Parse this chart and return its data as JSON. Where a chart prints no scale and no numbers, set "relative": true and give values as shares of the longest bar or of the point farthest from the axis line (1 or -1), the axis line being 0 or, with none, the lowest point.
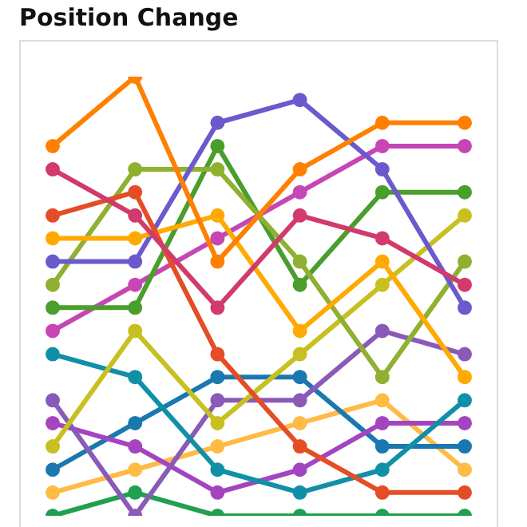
{
  "chart_data": {
    "type": "line",
    "title": "Position Change",
    "relative": true,
    "marker": "circle",
    "categories": [
      null,
      null,
      null,
      null,
      null,
      null
    ],
    "series": [
      {
        "color": "#ff8000",
        "values": [
          0.842,
          1,
          0.579,
          0.789,
          0.895,
          0.895
        ]
      },
      {
        "color": "#d13b6b",
        "values": [
          0.789,
          0.684,
          0.474,
          0.684,
          0.632,
          0.526
        ]
      },
      {
        "color": "#e44d26",
        "values": [
          0.684,
          0.737,
          0.368,
          0.158,
          0.053,
          0.053
        ]
      },
      {
        "color": "#ffaa00",
        "values": [
          0.632,
          0.632,
          0.684,
          0.421,
          0.579,
          0.316
        ]
      },
      {
        "color": "#6a5acd",
        "values": [
          0.579,
          0.579,
          0.895,
          0.947,
          0.789,
          0.474
        ]
      },
      {
        "color": "#8fb030",
        "values": [
          0.526,
          0.789,
          0.789,
          0.579,
          0.316,
          0.579
        ]
      },
      {
        "color": "#4a9e2c",
        "values": [
          0.474,
          0.474,
          0.842,
          0.526,
          0.737,
          0.737
        ]
      },
      {
        "color": "#c646b4",
        "values": [
          0.421,
          0.526,
          0.632,
          0.737,
          0.842,
          0.842
        ]
      },
      {
        "color": "#c8c020",
        "values": [
          0.158,
          0.421,
          0.211,
          0.368,
          0.526,
          0.684
        ]
      },
      {
        "color": "#1090a8",
        "values": [
          0.368,
          0.316,
          0.105,
          0.053,
          0.105,
          0.263
        ]
      },
      {
        "color": "#8a5ab8",
        "values": [
          0.263,
          0,
          0.263,
          0.263,
          0.421,
          0.368
        ]
      },
      {
        "color": "#a444c0",
        "values": [
          0.211,
          0.158,
          0.053,
          0.105,
          0.211,
          0.211
        ]
      },
      {
        "color": "#1a78b0",
        "values": [
          0.105,
          0.211,
          0.316,
          0.316,
          0.158,
          0.158
        ]
      },
      {
        "color": "#ffbb44",
        "values": [
          0.053,
          0.105,
          0.158,
          0.211,
          0.263,
          0.105
        ]
      },
      {
        "color": "#20a050",
        "values": [
          0,
          0.053,
          0,
          0,
          0,
          0
        ]
      }
    ]
  }
}
